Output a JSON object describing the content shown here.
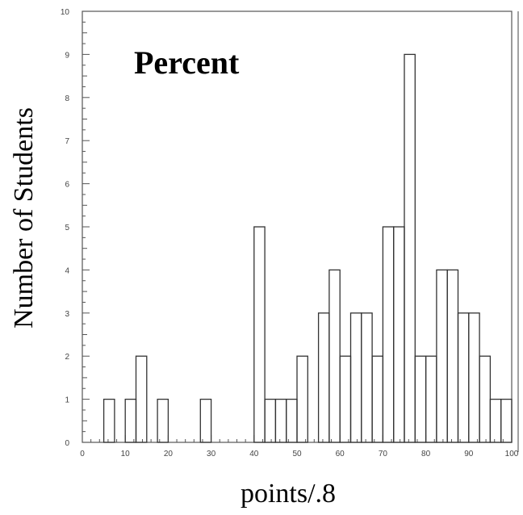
{
  "chart_data": {
    "type": "bar",
    "title": "Percent",
    "xlabel": "points/.8",
    "ylabel": "Number of Students",
    "xlim": [
      0,
      100
    ],
    "ylim": [
      0,
      10
    ],
    "grid": false,
    "x_ticks": [
      "0",
      "10",
      "20",
      "30",
      "40",
      "50",
      "60",
      "70",
      "80",
      "90",
      "100"
    ],
    "y_ticks": [
      "0",
      "1",
      "2",
      "3",
      "4",
      "5",
      "6",
      "7",
      "8",
      "9",
      "10"
    ],
    "bin_width": 2.5,
    "bin_starts": [
      0,
      2.5,
      5,
      7.5,
      10,
      12.5,
      15,
      17.5,
      20,
      22.5,
      25,
      27.5,
      30,
      32.5,
      35,
      37.5,
      40,
      42.5,
      45,
      47.5,
      50,
      52.5,
      55,
      57.5,
      60,
      62.5,
      65,
      67.5,
      70,
      72.5,
      75,
      77.5,
      80,
      82.5,
      85,
      87.5,
      90,
      92.5,
      95,
      97.5
    ],
    "values": [
      0,
      0,
      1,
      0,
      1,
      2,
      0,
      1,
      0,
      0,
      0,
      1,
      0,
      0,
      0,
      0,
      5,
      1,
      1,
      1,
      2,
      0,
      3,
      4,
      2,
      3,
      3,
      2,
      5,
      5,
      9,
      2,
      2,
      4,
      4,
      3,
      3,
      2,
      1,
      1
    ]
  }
}
